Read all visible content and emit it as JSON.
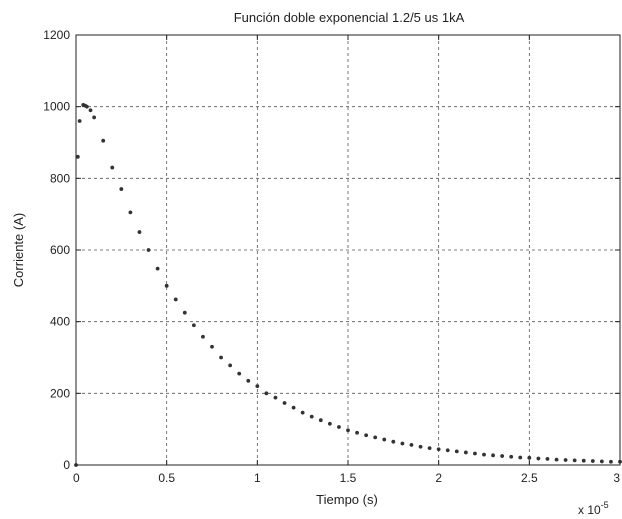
{
  "chart_data": {
    "type": "scatter",
    "title": "Función doble exponencial 1.2/5 us 1kA",
    "xlabel": "Tiempo (s)",
    "ylabel": "Corriente (A)",
    "x_multiplier_label": "x 10",
    "x_multiplier_exponent": "-5",
    "xlim": [
      0,
      3
    ],
    "ylim": [
      0,
      1200
    ],
    "x_ticks": [
      0,
      0.5,
      1,
      1.5,
      2,
      2.5,
      3
    ],
    "x_tick_labels": [
      "0",
      "0.5",
      "1",
      "1.5",
      "2",
      "2.5",
      "3"
    ],
    "y_ticks": [
      0,
      200,
      400,
      600,
      800,
      1000,
      1200
    ],
    "y_tick_labels": [
      "0",
      "200",
      "400",
      "600",
      "800",
      "1000",
      "1200"
    ],
    "grid": true,
    "point_color": "#333333",
    "series": [
      {
        "points": [
          [
            0.0,
            0
          ],
          [
            0.01,
            860
          ],
          [
            0.02,
            960
          ],
          [
            0.04,
            1005
          ],
          [
            0.05,
            1003
          ],
          [
            0.06,
            1000
          ],
          [
            0.08,
            990
          ],
          [
            0.1,
            970
          ],
          [
            0.15,
            905
          ],
          [
            0.2,
            830
          ],
          [
            0.25,
            770
          ],
          [
            0.3,
            705
          ],
          [
            0.35,
            650
          ],
          [
            0.4,
            600
          ],
          [
            0.45,
            548
          ],
          [
            0.5,
            500
          ],
          [
            0.55,
            462
          ],
          [
            0.6,
            425
          ],
          [
            0.65,
            390
          ],
          [
            0.7,
            358
          ],
          [
            0.75,
            330
          ],
          [
            0.8,
            300
          ],
          [
            0.85,
            278
          ],
          [
            0.9,
            255
          ],
          [
            0.95,
            235
          ],
          [
            1.0,
            220
          ],
          [
            1.05,
            200
          ],
          [
            1.1,
            188
          ],
          [
            1.15,
            173
          ],
          [
            1.2,
            160
          ],
          [
            1.25,
            146
          ],
          [
            1.3,
            135
          ],
          [
            1.35,
            125
          ],
          [
            1.4,
            115
          ],
          [
            1.45,
            106
          ],
          [
            1.5,
            97
          ],
          [
            1.55,
            90
          ],
          [
            1.6,
            83
          ],
          [
            1.65,
            77
          ],
          [
            1.7,
            71
          ],
          [
            1.75,
            65
          ],
          [
            1.8,
            60
          ],
          [
            1.85,
            56
          ],
          [
            1.9,
            51
          ],
          [
            1.95,
            47
          ],
          [
            2.0,
            44
          ],
          [
            2.05,
            41
          ],
          [
            2.1,
            38
          ],
          [
            2.15,
            35
          ],
          [
            2.2,
            32
          ],
          [
            2.25,
            29
          ],
          [
            2.3,
            27
          ],
          [
            2.35,
            25
          ],
          [
            2.4,
            23
          ],
          [
            2.45,
            21
          ],
          [
            2.5,
            20
          ],
          [
            2.55,
            18
          ],
          [
            2.6,
            17
          ],
          [
            2.65,
            15
          ],
          [
            2.7,
            14
          ],
          [
            2.75,
            13
          ],
          [
            2.8,
            12
          ],
          [
            2.85,
            11
          ],
          [
            2.9,
            10
          ],
          [
            2.95,
            9
          ],
          [
            3.0,
            9
          ]
        ]
      }
    ]
  }
}
